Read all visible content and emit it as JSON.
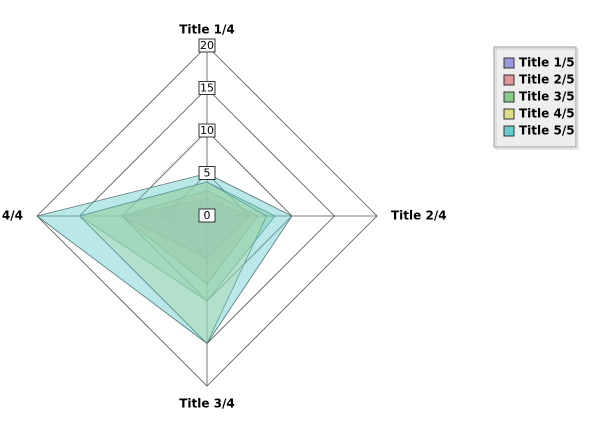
{
  "chart_data": {
    "type": "radar",
    "categories": [
      "Title 1/4",
      "Title 2/4",
      "Title 3/4",
      "4/4"
    ],
    "rlim": [
      0,
      20
    ],
    "rticks": [
      0,
      5,
      10,
      15,
      20
    ],
    "series": [
      {
        "name": "Title 1/5",
        "color": "#9999dd",
        "values": [
          2,
          5,
          5,
          10
        ]
      },
      {
        "name": "Title 2/5",
        "color": "#dd9999",
        "values": [
          3,
          6,
          8,
          10
        ]
      },
      {
        "name": "Title 3/5",
        "color": "#88cc88",
        "values": [
          4,
          8,
          10,
          15
        ]
      },
      {
        "name": "Title 4/5",
        "color": "#dddd88",
        "values": [
          4,
          7,
          15,
          15
        ]
      },
      {
        "name": "Title 5/5",
        "color": "#66cccc",
        "values": [
          5,
          10,
          15,
          20
        ]
      }
    ]
  }
}
